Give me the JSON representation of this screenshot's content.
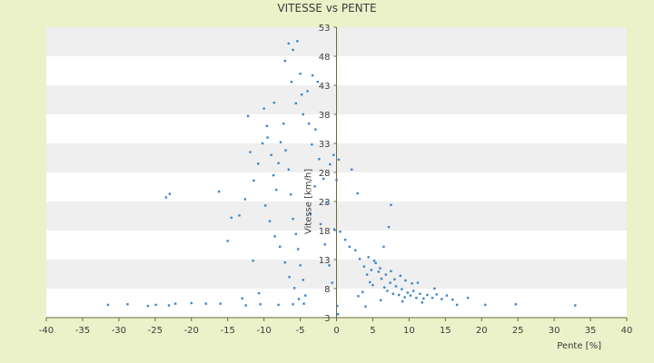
{
  "chart_data": {
    "type": "scatter",
    "title": "VITESSE vs PENTE",
    "xlabel": "Pente [%]",
    "ylabel": "Vitesse [km/h]",
    "xlim": [
      -40,
      40
    ],
    "ylim": [
      3,
      53
    ],
    "x_ticks": [
      -40,
      -35,
      -30,
      -25,
      -20,
      -15,
      -10,
      -5,
      0,
      5,
      10,
      15,
      20,
      25,
      30,
      35,
      40
    ],
    "y_ticks": [
      3,
      8,
      13,
      18,
      23,
      28,
      33,
      38,
      43,
      48,
      53
    ],
    "grid": true,
    "legend": "none",
    "colors": {
      "background": "#ebf1c9",
      "plot_band_light": "#ffffff",
      "plot_band_dark": "#efefef",
      "series": "#3b85d0",
      "secondary_series": "#7f8c1f",
      "axis": "#6b6b3a"
    },
    "series": [
      {
        "values": [
          {
            "x": -31.5,
            "y": 5.2
          },
          {
            "x": -28.8,
            "y": 5.3
          },
          {
            "x": -26.0,
            "y": 5.0
          },
          {
            "x": -24.9,
            "y": 5.2
          },
          {
            "x": -23.1,
            "y": 5.1
          },
          {
            "x": -22.2,
            "y": 5.4
          },
          {
            "x": -20.0,
            "y": 5.5
          },
          {
            "x": -18.0,
            "y": 5.4
          },
          {
            "x": -16.0,
            "y": 5.4
          },
          {
            "x": -12.5,
            "y": 5.1
          },
          {
            "x": -10.5,
            "y": 5.3
          },
          {
            "x": -8.0,
            "y": 5.2
          },
          {
            "x": -6.0,
            "y": 5.3
          },
          {
            "x": -4.5,
            "y": 5.4
          },
          {
            "x": 20.5,
            "y": 5.2
          },
          {
            "x": 24.7,
            "y": 5.3
          },
          {
            "x": 32.9,
            "y": 5.1
          },
          {
            "x": -23.5,
            "y": 23.7
          },
          {
            "x": -23.0,
            "y": 24.3
          },
          {
            "x": -16.2,
            "y": 24.7
          },
          {
            "x": -14.5,
            "y": 20.2
          },
          {
            "x": -15.0,
            "y": 16.2
          },
          {
            "x": -13.0,
            "y": 6.3
          },
          {
            "x": -11.5,
            "y": 12.8
          },
          {
            "x": -10.7,
            "y": 7.2
          },
          {
            "x": -12.2,
            "y": 37.7
          },
          {
            "x": -10.0,
            "y": 39.0
          },
          {
            "x": -9.5,
            "y": 34.0
          },
          {
            "x": -9.0,
            "y": 31.0
          },
          {
            "x": -8.7,
            "y": 27.5
          },
          {
            "x": -8.3,
            "y": 25.0
          },
          {
            "x": -8.0,
            "y": 29.6
          },
          {
            "x": -7.7,
            "y": 33.2
          },
          {
            "x": -7.3,
            "y": 36.4
          },
          {
            "x": -7.0,
            "y": 31.8
          },
          {
            "x": -6.6,
            "y": 28.5
          },
          {
            "x": -6.3,
            "y": 24.2
          },
          {
            "x": -6.0,
            "y": 20.0
          },
          {
            "x": -5.6,
            "y": 17.4
          },
          {
            "x": -5.3,
            "y": 14.8
          },
          {
            "x": -5.0,
            "y": 12.0
          },
          {
            "x": -4.6,
            "y": 9.5
          },
          {
            "x": -4.3,
            "y": 6.8
          },
          {
            "x": -9.8,
            "y": 22.3
          },
          {
            "x": -9.2,
            "y": 19.6
          },
          {
            "x": -8.5,
            "y": 17.0
          },
          {
            "x": -7.8,
            "y": 15.2
          },
          {
            "x": -7.1,
            "y": 12.5
          },
          {
            "x": -6.5,
            "y": 10.0
          },
          {
            "x": -5.8,
            "y": 8.1
          },
          {
            "x": -5.2,
            "y": 6.2
          },
          {
            "x": -6.6,
            "y": 50.2
          },
          {
            "x": -6.0,
            "y": 49.1
          },
          {
            "x": -5.4,
            "y": 50.6
          },
          {
            "x": -7.1,
            "y": 47.2
          },
          {
            "x": -5.0,
            "y": 45.0
          },
          {
            "x": -6.2,
            "y": 43.6
          },
          {
            "x": -4.8,
            "y": 41.4
          },
          {
            "x": -5.6,
            "y": 39.9
          },
          {
            "x": -4.6,
            "y": 38.0
          },
          {
            "x": -3.8,
            "y": 36.4
          },
          {
            "x": -3.4,
            "y": 32.8
          },
          {
            "x": -2.9,
            "y": 35.4
          },
          {
            "x": -2.4,
            "y": 30.3
          },
          {
            "x": -1.8,
            "y": 26.9
          },
          {
            "x": -1.4,
            "y": 22.8
          },
          {
            "x": -0.9,
            "y": 29.4
          },
          {
            "x": -0.4,
            "y": 31.0
          },
          {
            "x": 0.3,
            "y": 30.2
          },
          {
            "x": 2.1,
            "y": 28.5
          },
          {
            "x": -3.0,
            "y": 25.6
          },
          {
            "x": -2.2,
            "y": 19.1
          },
          {
            "x": -1.6,
            "y": 15.6
          },
          {
            "x": -1.0,
            "y": 12.0
          },
          {
            "x": -0.6,
            "y": 9.0
          },
          {
            "x": -2.6,
            "y": 43.6
          },
          {
            "x": -3.3,
            "y": 44.7
          },
          {
            "x": -4.0,
            "y": 42.0
          },
          {
            "x": -8.6,
            "y": 40.0
          },
          {
            "x": -9.6,
            "y": 36.0
          },
          {
            "x": -10.2,
            "y": 33.0
          },
          {
            "x": -10.8,
            "y": 29.5
          },
          {
            "x": -11.4,
            "y": 26.6
          },
          {
            "x": -12.6,
            "y": 23.4
          },
          {
            "x": -13.4,
            "y": 20.6
          },
          {
            "x": -11.9,
            "y": 31.5
          },
          {
            "x": -3.6,
            "y": 20.9
          },
          {
            "x": 0.5,
            "y": 17.8
          },
          {
            "x": 1.2,
            "y": 16.4
          },
          {
            "x": 1.8,
            "y": 15.2
          },
          {
            "x": 2.6,
            "y": 14.6
          },
          {
            "x": 3.2,
            "y": 13.1
          },
          {
            "x": 3.8,
            "y": 11.8
          },
          {
            "x": 4.2,
            "y": 10.4
          },
          {
            "x": 4.6,
            "y": 9.1
          },
          {
            "x": 5.0,
            "y": 8.6
          },
          {
            "x": 5.4,
            "y": 12.4
          },
          {
            "x": 5.8,
            "y": 10.9
          },
          {
            "x": 6.2,
            "y": 9.7
          },
          {
            "x": 6.6,
            "y": 8.2
          },
          {
            "x": 7.0,
            "y": 7.6
          },
          {
            "x": 7.4,
            "y": 9.0
          },
          {
            "x": 7.8,
            "y": 7.1
          },
          {
            "x": 8.2,
            "y": 8.4
          },
          {
            "x": 8.6,
            "y": 6.9
          },
          {
            "x": 9.0,
            "y": 7.9
          },
          {
            "x": 9.4,
            "y": 6.5
          },
          {
            "x": 9.8,
            "y": 7.3
          },
          {
            "x": 10.2,
            "y": 6.8
          },
          {
            "x": 10.6,
            "y": 7.6
          },
          {
            "x": 11.0,
            "y": 6.4
          },
          {
            "x": 11.5,
            "y": 7.1
          },
          {
            "x": 12.0,
            "y": 6.3
          },
          {
            "x": 12.5,
            "y": 6.9
          },
          {
            "x": 13.2,
            "y": 6.4
          },
          {
            "x": 13.8,
            "y": 7.0
          },
          {
            "x": 14.5,
            "y": 6.2
          },
          {
            "x": 15.2,
            "y": 6.8
          },
          {
            "x": 16.0,
            "y": 6.1
          },
          {
            "x": 18.1,
            "y": 6.4
          },
          {
            "x": 4.4,
            "y": 13.4
          },
          {
            "x": 4.8,
            "y": 11.2
          },
          {
            "x": 5.2,
            "y": 12.8
          },
          {
            "x": 6.0,
            "y": 11.5
          },
          {
            "x": 6.8,
            "y": 10.4
          },
          {
            "x": 7.5,
            "y": 11.0
          },
          {
            "x": 8.0,
            "y": 9.6
          },
          {
            "x": 8.8,
            "y": 10.2
          },
          {
            "x": 9.5,
            "y": 9.4
          },
          {
            "x": 10.4,
            "y": 8.9
          },
          {
            "x": 11.2,
            "y": 9.0
          },
          {
            "x": 2.9,
            "y": 24.4
          },
          {
            "x": 7.5,
            "y": 22.4
          },
          {
            "x": 7.2,
            "y": 18.6
          },
          {
            "x": 6.5,
            "y": 15.2
          },
          {
            "x": 3.0,
            "y": 6.7
          },
          {
            "x": 3.6,
            "y": 7.4
          },
          {
            "x": 4.0,
            "y": 4.9
          },
          {
            "x": 6.1,
            "y": 6.0
          },
          {
            "x": 11.8,
            "y": 5.6
          },
          {
            "x": 9.1,
            "y": 5.8
          },
          {
            "x": 13.5,
            "y": 8.0
          },
          {
            "x": 0.2,
            "y": 3.6
          },
          {
            "x": 0.1,
            "y": 5.0
          },
          {
            "x": 0.0,
            "y": 26.7
          },
          {
            "x": 16.6,
            "y": 5.2
          },
          {
            "x": -0.3,
            "y": 18.2
          }
        ]
      }
    ]
  }
}
